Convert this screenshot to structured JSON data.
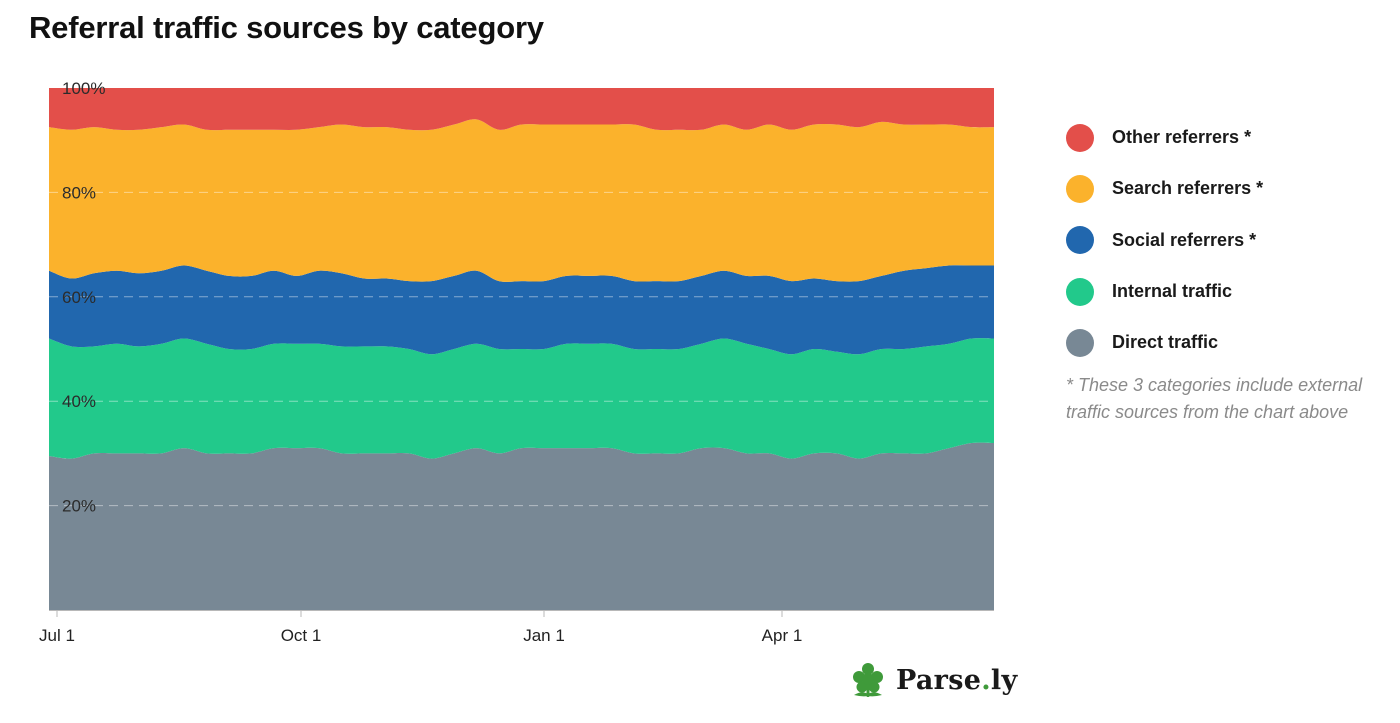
{
  "title": "Referral traffic sources by category",
  "legend": [
    {
      "label": "Other referrers *",
      "color": "#e34f4a"
    },
    {
      "label": "Search referrers *",
      "color": "#fbb22c"
    },
    {
      "label": "Social referrers *",
      "color": "#2167ae"
    },
    {
      "label": "Internal traffic",
      "color": "#22c98b"
    },
    {
      "label": "Direct traffic",
      "color": "#788895"
    }
  ],
  "footnote": "* These 3 categories include external traffic sources from the chart above",
  "brand": {
    "name_part1": "Parse",
    "name_dot": ".",
    "name_part2": "ly",
    "icon": "leaf-icon"
  },
  "chart_data": {
    "type": "area",
    "stacked": true,
    "normalized": true,
    "title": "Referral traffic sources by category",
    "y_tick_labels": [
      "20%",
      "40%",
      "60%",
      "80%",
      "100%"
    ],
    "y_ticks": [
      20,
      40,
      60,
      80,
      100
    ],
    "ylim": [
      0,
      100
    ],
    "x_tick_labels": [
      "Jul 1",
      "Oct 1",
      "Jan 1",
      "Apr 1"
    ],
    "x_tick_dates": [
      "Jul 1",
      "Oct 1",
      "Jan 1",
      "Apr 1"
    ],
    "grid": "horizontal dashed",
    "legend_position": "right",
    "x_dates": [
      "Jun 28",
      "Jul 6",
      "Jul 15",
      "Jul 24",
      "Aug 2",
      "Aug 10",
      "Aug 19",
      "Aug 28",
      "Sep 6",
      "Sep 14",
      "Sep 23",
      "Oct 2",
      "Oct 10",
      "Oct 19",
      "Oct 28",
      "Nov 6",
      "Nov 14",
      "Nov 23",
      "Dec 2",
      "Dec 11",
      "Dec 19",
      "Dec 28",
      "Jan 6",
      "Jan 15",
      "Jan 24",
      "Feb 2",
      "Feb 10",
      "Feb 19",
      "Feb 28",
      "Mar 9",
      "Mar 17",
      "Mar 26",
      "Apr 4",
      "Apr 13",
      "Apr 22",
      "Apr 30",
      "May 9",
      "May 18",
      "May 27",
      "Jun 4",
      "Jun 13",
      "Jun 22",
      "Jun 30"
    ],
    "series": [
      {
        "name": "Direct traffic",
        "color": "#788895",
        "values": [
          29.5,
          29,
          30,
          30,
          30,
          30,
          31,
          30,
          30,
          30,
          31,
          31,
          31,
          30,
          30,
          30,
          30,
          29,
          30,
          31,
          30,
          31,
          31,
          31,
          31,
          31,
          30,
          30,
          30,
          31,
          31,
          30,
          30,
          29,
          30,
          30,
          29,
          30,
          30,
          30,
          31,
          32,
          32
        ]
      },
      {
        "name": "Internal traffic",
        "color": "#22c98b",
        "values": [
          22.5,
          21.5,
          20.5,
          21,
          20.5,
          21,
          21,
          21,
          20,
          20,
          20,
          20,
          20,
          20.5,
          20.5,
          20.5,
          20,
          20,
          20,
          20,
          20,
          19,
          19,
          20,
          20,
          20,
          20,
          20,
          20,
          20,
          21,
          21,
          20,
          20,
          20,
          19.5,
          20,
          20,
          20,
          20.5,
          20,
          20,
          20
        ]
      },
      {
        "name": "Social referrers *",
        "color": "#2167ae",
        "values": [
          13,
          13,
          14,
          14,
          14,
          14,
          14,
          14,
          14,
          14,
          14,
          13,
          14,
          14,
          13,
          13,
          13,
          14,
          14,
          14,
          13,
          13,
          13,
          13,
          13,
          13,
          13,
          13,
          13,
          13,
          13,
          13,
          14,
          14,
          13.5,
          13.5,
          14,
          14,
          15,
          15,
          15,
          14,
          14
        ]
      },
      {
        "name": "Search referrers *",
        "color": "#fbb22c",
        "values": [
          27.5,
          28.5,
          28,
          27,
          27.5,
          27.5,
          27,
          27,
          28,
          28,
          27,
          28,
          27.5,
          28.5,
          29,
          29,
          29,
          29,
          29,
          29,
          29,
          30,
          30,
          29,
          29,
          29,
          30,
          29,
          29,
          28,
          28,
          28,
          29,
          29,
          29.5,
          30,
          29.5,
          29.5,
          28,
          27.5,
          27,
          26.5,
          26.5
        ]
      },
      {
        "name": "Other referrers *",
        "color": "#e34f4a",
        "values": [
          7.5,
          8,
          7.5,
          8,
          8,
          7.5,
          7,
          8,
          8,
          8,
          8,
          8,
          7.5,
          7,
          7.5,
          7.5,
          8,
          8,
          7,
          6,
          8,
          7,
          7,
          7,
          7,
          7,
          7,
          8,
          8,
          8,
          7,
          8,
          7,
          8,
          7,
          7,
          7.5,
          6.5,
          7,
          7,
          7,
          7.5,
          7.5
        ]
      }
    ]
  }
}
